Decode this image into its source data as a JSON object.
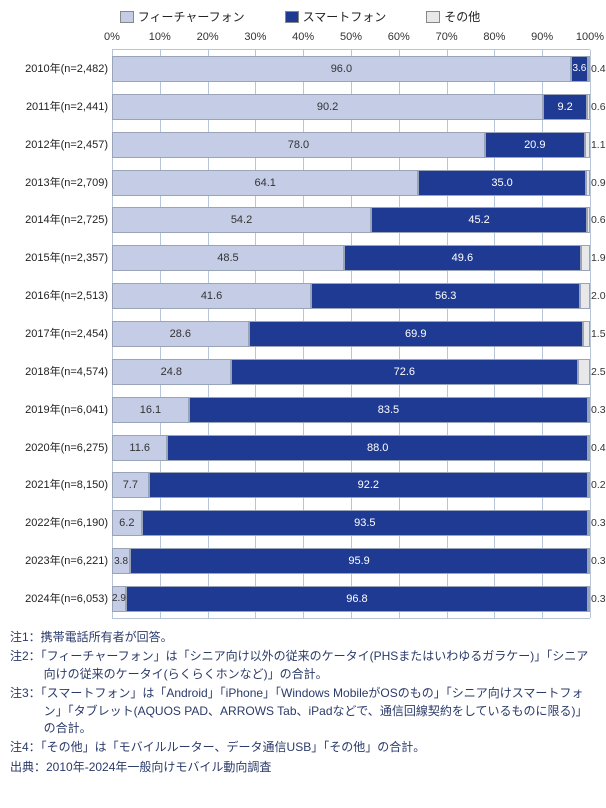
{
  "legend": [
    {
      "label": "フィーチャーフォン",
      "color": "#c5cde6"
    },
    {
      "label": "スマートフォン",
      "color": "#1f3a93"
    },
    {
      "label": "その他",
      "color": "#e8e8e8"
    }
  ],
  "chart": {
    "type": "stacked-bar-horizontal",
    "xticks": [
      0,
      10,
      20,
      30,
      40,
      50,
      60,
      70,
      80,
      90,
      100
    ],
    "xtick_suffix": "%",
    "bar_border": "#9aa4b8",
    "grid_color": "#b8c4d8",
    "label_fontsize": 11,
    "value_text_light": "#333333",
    "value_text_dark": "#ffffff",
    "rows": [
      {
        "label": "2010年(n=2,482)",
        "v": [
          96.0,
          3.6,
          0.4
        ]
      },
      {
        "label": "2011年(n=2,441)",
        "v": [
          90.2,
          9.2,
          0.6
        ]
      },
      {
        "label": "2012年(n=2,457)",
        "v": [
          78.0,
          20.9,
          1.1
        ]
      },
      {
        "label": "2013年(n=2,709)",
        "v": [
          64.1,
          35.0,
          0.9
        ]
      },
      {
        "label": "2014年(n=2,725)",
        "v": [
          54.2,
          45.2,
          0.6
        ]
      },
      {
        "label": "2015年(n=2,357)",
        "v": [
          48.5,
          49.6,
          1.9
        ]
      },
      {
        "label": "2016年(n=2,513)",
        "v": [
          41.6,
          56.3,
          2.0
        ]
      },
      {
        "label": "2017年(n=2,454)",
        "v": [
          28.6,
          69.9,
          1.5
        ]
      },
      {
        "label": "2018年(n=4,574)",
        "v": [
          24.8,
          72.6,
          2.5
        ]
      },
      {
        "label": "2019年(n=6,041)",
        "v": [
          16.1,
          83.5,
          0.3
        ]
      },
      {
        "label": "2020年(n=6,275)",
        "v": [
          11.6,
          88.0,
          0.4
        ]
      },
      {
        "label": "2021年(n=8,150)",
        "v": [
          7.7,
          92.2,
          0.2
        ]
      },
      {
        "label": "2022年(n=6,190)",
        "v": [
          6.2,
          93.5,
          0.3
        ]
      },
      {
        "label": "2023年(n=6,221)",
        "v": [
          3.8,
          95.9,
          0.3
        ]
      },
      {
        "label": "2024年(n=6,053)",
        "v": [
          2.9,
          96.8,
          0.3
        ]
      }
    ]
  },
  "notes": {
    "n1": "注1：携帯電話所有者が回答。",
    "n2": "注2：「フィーチャーフォン」は「シニア向け以外の従来のケータイ(PHSまたはいわゆるガラケー)」「シニア向けの従来のケータイ(らくらくホンなど)」の合計。",
    "n3": "注3：「スマートフォン」は「Android」「iPhone」「Windows MobileがOSのもの」「シニア向けスマートフォン」「タブレット(AQUOS PAD、ARROWS Tab、iPadなどで、通信回線契約をしているものに限る)」の合計。",
    "n4": "注4：「その他」は「モバイルルーター、データ通信USB」「その他」の合計。",
    "src": "出典：2010年-2024年一般向けモバイル動向調査"
  }
}
